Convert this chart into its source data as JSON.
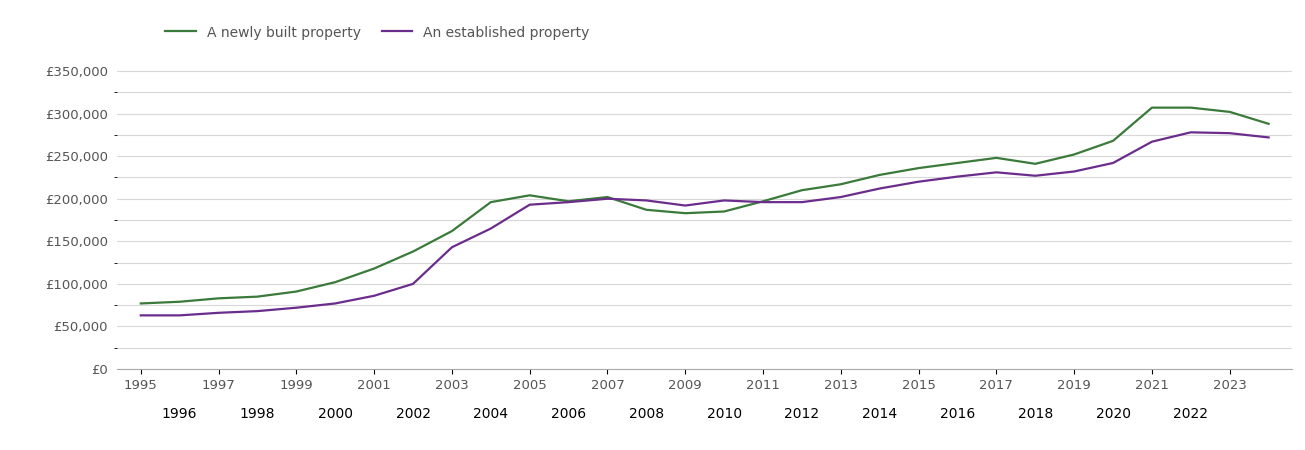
{
  "legend_new": "A newly built property",
  "legend_established": "An established property",
  "color_new": "#3a7a3a",
  "color_established": "#6b2d8b",
  "years": [
    1995,
    1996,
    1997,
    1998,
    1999,
    2000,
    2001,
    2002,
    2003,
    2004,
    2005,
    2006,
    2007,
    2008,
    2009,
    2010,
    2011,
    2012,
    2013,
    2014,
    2015,
    2016,
    2017,
    2018,
    2019,
    2020,
    2021,
    2022,
    2023,
    2024
  ],
  "new_prices": [
    77000,
    79000,
    83000,
    85000,
    91000,
    102000,
    118000,
    138000,
    162000,
    196000,
    204000,
    197000,
    202000,
    187000,
    183000,
    185000,
    197000,
    210000,
    217000,
    228000,
    236000,
    242000,
    248000,
    241000,
    252000,
    268000,
    307000,
    307000,
    302000,
    288000
  ],
  "established_prices": [
    63000,
    63000,
    66000,
    68000,
    72000,
    77000,
    86000,
    100000,
    143000,
    165000,
    193000,
    196000,
    200000,
    198000,
    192000,
    198000,
    196000,
    196000,
    202000,
    212000,
    220000,
    226000,
    231000,
    227000,
    232000,
    242000,
    267000,
    278000,
    277000,
    272000
  ],
  "ylim": [
    0,
    370000
  ],
  "yticks": [
    0,
    50000,
    100000,
    150000,
    200000,
    250000,
    300000,
    350000
  ],
  "minor_yticks": [
    25000,
    75000,
    125000,
    175000,
    225000,
    275000,
    325000
  ],
  "xlim": [
    1994.4,
    2024.6
  ],
  "odd_years": [
    1995,
    1997,
    1999,
    2001,
    2003,
    2005,
    2007,
    2009,
    2011,
    2013,
    2015,
    2017,
    2019,
    2021,
    2023
  ],
  "even_years": [
    1996,
    1998,
    2000,
    2002,
    2004,
    2006,
    2008,
    2010,
    2012,
    2014,
    2016,
    2018,
    2020,
    2022
  ],
  "background_color": "#ffffff",
  "grid_color": "#d8d8d8",
  "tick_label_color": "#555555",
  "figsize": [
    13.05,
    4.5
  ],
  "dpi": 100
}
